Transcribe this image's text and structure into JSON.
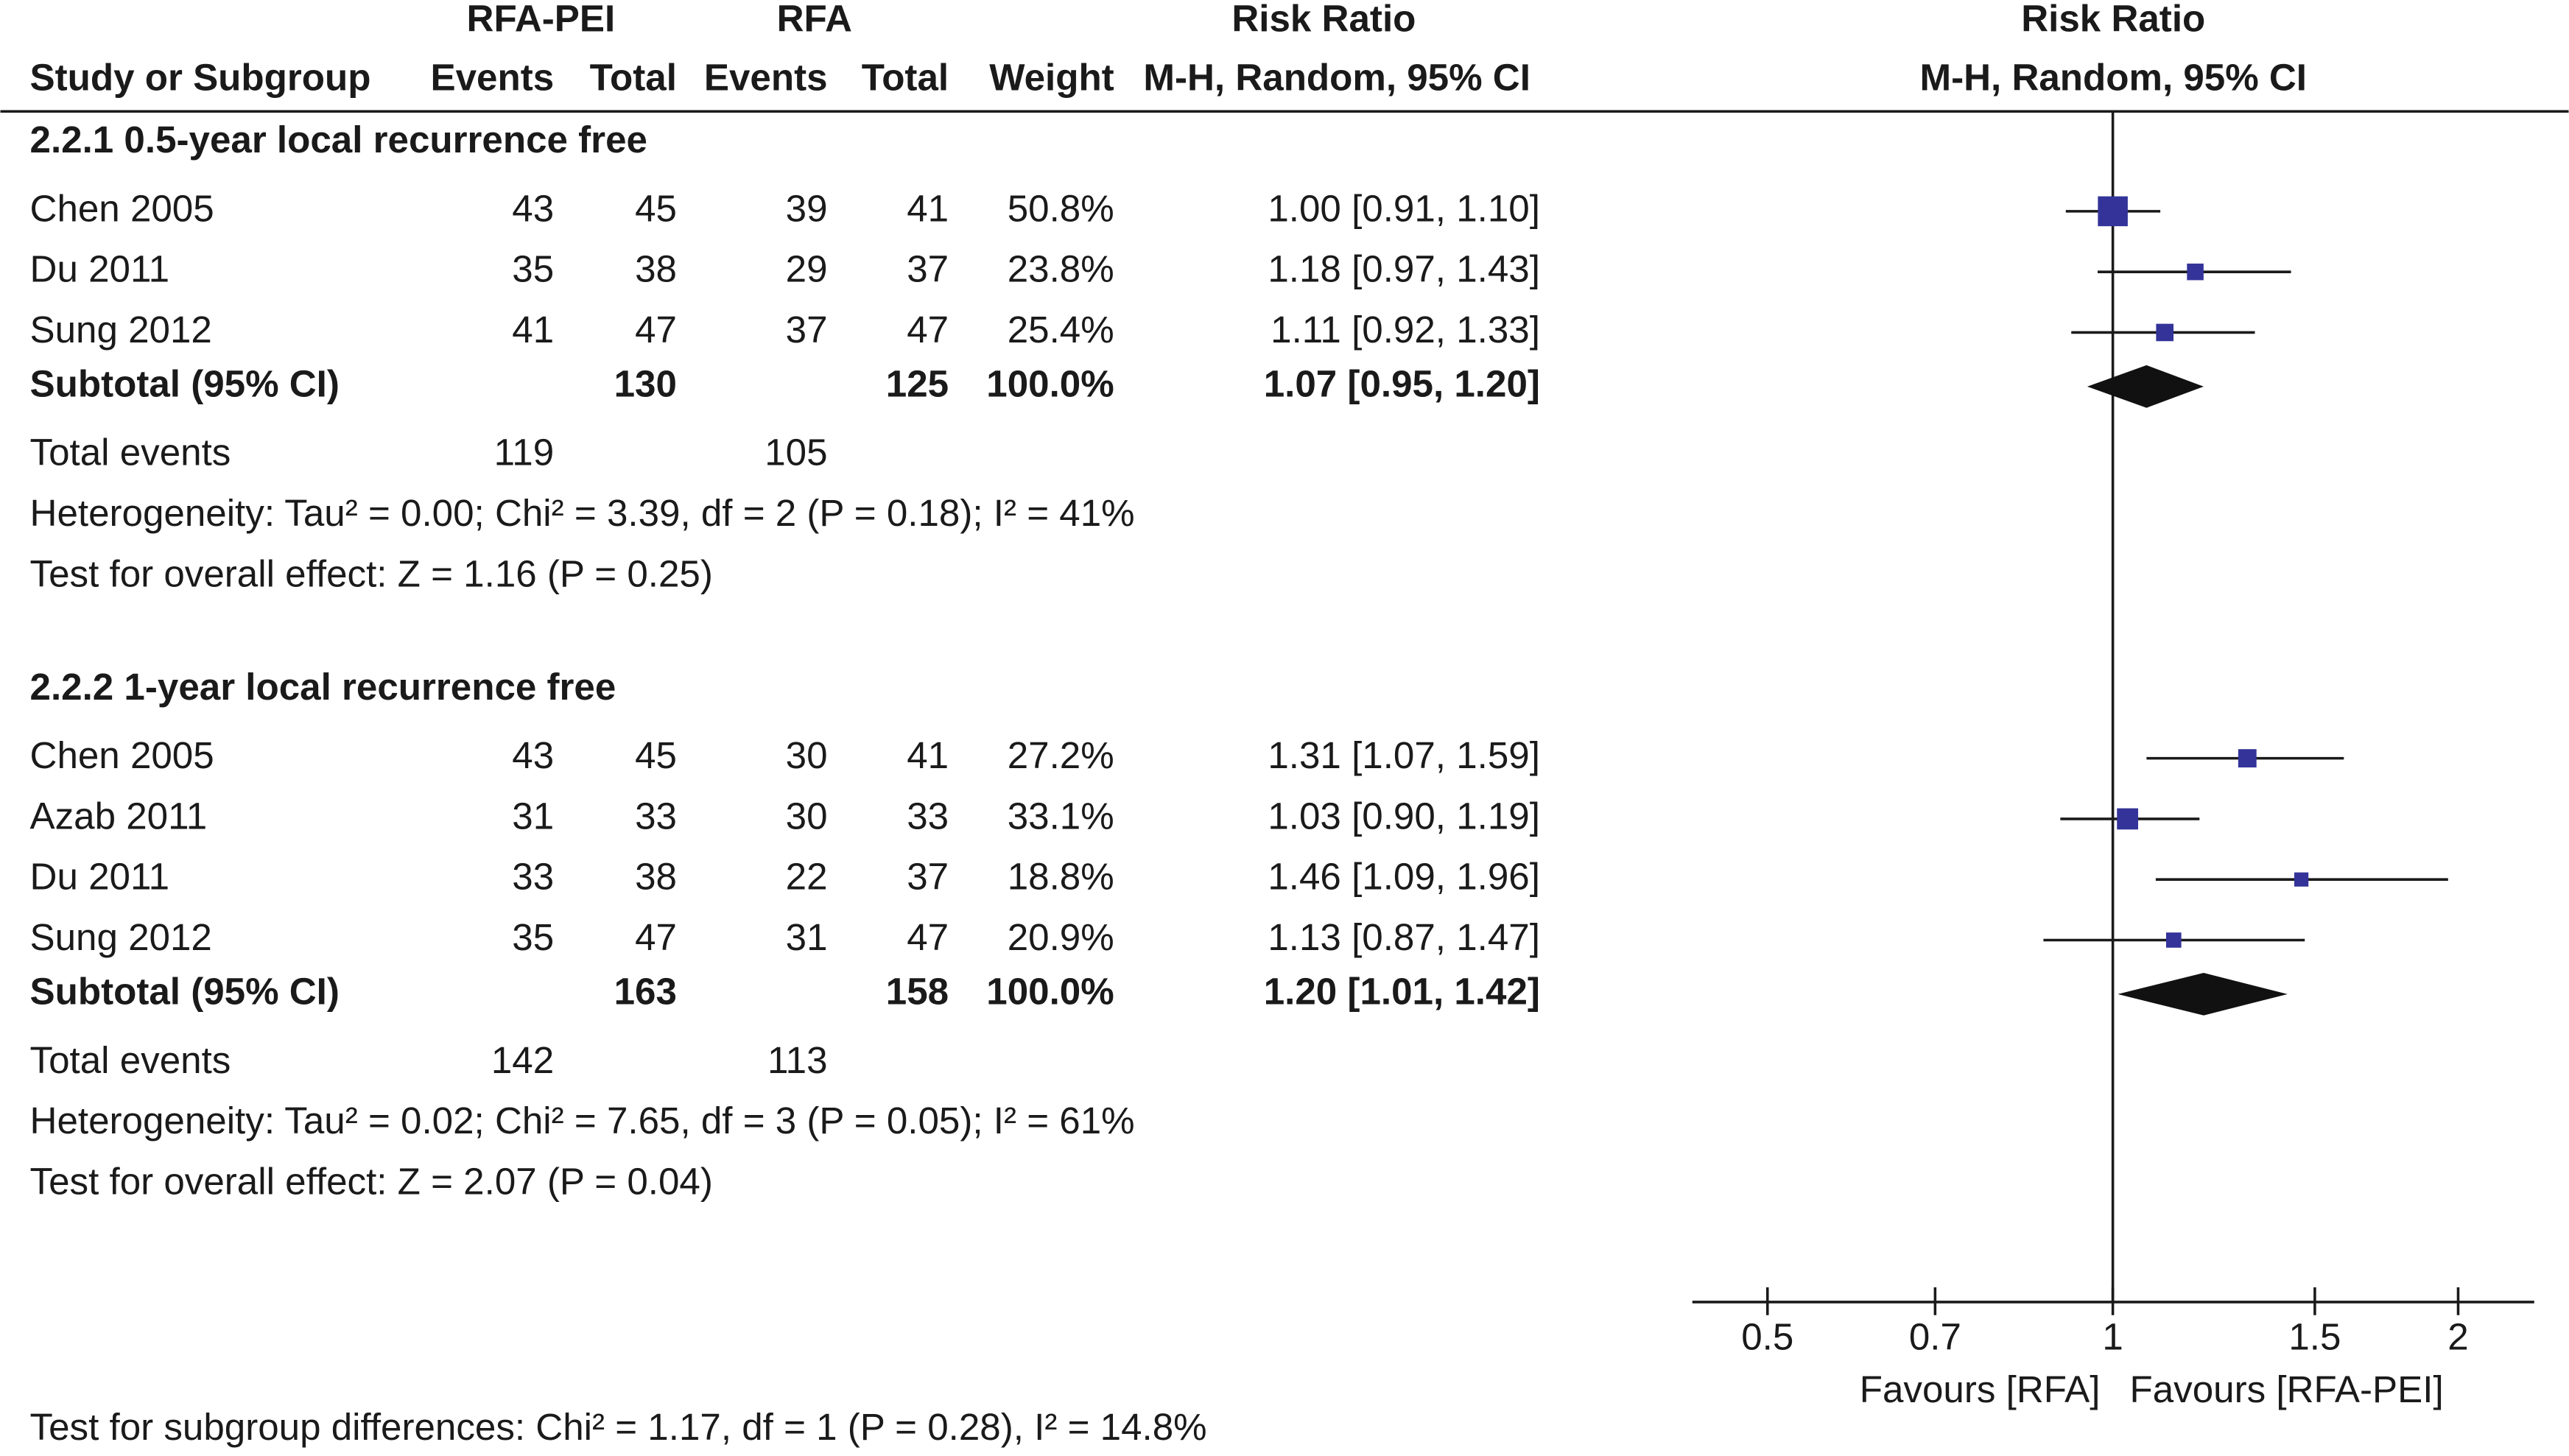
{
  "chart_data": {
    "type": "forest",
    "columns": {
      "experimental": "RFA-PEI",
      "control": "RFA",
      "study": "Study or Subgroup",
      "events": "Events",
      "total": "Total",
      "weight": "Weight",
      "effect_title": "Risk Ratio",
      "effect_method": "M-H, Random, 95% CI"
    },
    "subtotal_label": "Subtotal (95% CI)",
    "total_events_label": "Total events",
    "groups": [
      {
        "title": "2.2.1 0.5-year local recurrence free",
        "studies": [
          {
            "name": "Chen 2005",
            "exp_events": 43,
            "exp_total": 45,
            "ctl_events": 39,
            "ctl_total": 41,
            "weight": 50.8,
            "weight_label": "50.8%",
            "rr": 1.0,
            "lo": 0.91,
            "hi": 1.1,
            "ci_label": "1.00 [0.91, 1.10]"
          },
          {
            "name": "Du 2011",
            "exp_events": 35,
            "exp_total": 38,
            "ctl_events": 29,
            "ctl_total": 37,
            "weight": 23.8,
            "weight_label": "23.8%",
            "rr": 1.18,
            "lo": 0.97,
            "hi": 1.43,
            "ci_label": "1.18 [0.97, 1.43]"
          },
          {
            "name": "Sung 2012",
            "exp_events": 41,
            "exp_total": 47,
            "ctl_events": 37,
            "ctl_total": 47,
            "weight": 25.4,
            "weight_label": "25.4%",
            "rr": 1.11,
            "lo": 0.92,
            "hi": 1.33,
            "ci_label": "1.11 [0.92, 1.33]"
          }
        ],
        "subtotal": {
          "exp_total": 130,
          "ctl_total": 125,
          "weight_label": "100.0%",
          "rr": 1.07,
          "lo": 0.95,
          "hi": 1.2,
          "ci_label": "1.07 [0.95, 1.20]"
        },
        "exp_events_total": 119,
        "ctl_events_total": 105,
        "heterogeneity": "Heterogeneity: Tau² = 0.00; Chi² = 3.39, df = 2 (P = 0.18); I² = 41%",
        "overall_effect": "Test for overall effect: Z = 1.16 (P = 0.25)"
      },
      {
        "title": "2.2.2 1-year local recurrence free",
        "studies": [
          {
            "name": "Chen 2005",
            "exp_events": 43,
            "exp_total": 45,
            "ctl_events": 30,
            "ctl_total": 41,
            "weight": 27.2,
            "weight_label": "27.2%",
            "rr": 1.31,
            "lo": 1.07,
            "hi": 1.59,
            "ci_label": "1.31 [1.07, 1.59]"
          },
          {
            "name": "Azab 2011",
            "exp_events": 31,
            "exp_total": 33,
            "ctl_events": 30,
            "ctl_total": 33,
            "weight": 33.1,
            "weight_label": "33.1%",
            "rr": 1.03,
            "lo": 0.9,
            "hi": 1.19,
            "ci_label": "1.03 [0.90, 1.19]"
          },
          {
            "name": "Du 2011",
            "exp_events": 33,
            "exp_total": 38,
            "ctl_events": 22,
            "ctl_total": 37,
            "weight": 18.8,
            "weight_label": "18.8%",
            "rr": 1.46,
            "lo": 1.09,
            "hi": 1.96,
            "ci_label": "1.46 [1.09, 1.96]"
          },
          {
            "name": "Sung 2012",
            "exp_events": 35,
            "exp_total": 47,
            "ctl_events": 31,
            "ctl_total": 47,
            "weight": 20.9,
            "weight_label": "20.9%",
            "rr": 1.13,
            "lo": 0.87,
            "hi": 1.47,
            "ci_label": "1.13 [0.87, 1.47]"
          }
        ],
        "subtotal": {
          "exp_total": 163,
          "ctl_total": 158,
          "weight_label": "100.0%",
          "rr": 1.2,
          "lo": 1.01,
          "hi": 1.42,
          "ci_label": "1.20 [1.01, 1.42]"
        },
        "exp_events_total": 142,
        "ctl_events_total": 113,
        "heterogeneity": "Heterogeneity: Tau² = 0.02; Chi² = 7.65, df = 3 (P = 0.05); I² = 61%",
        "overall_effect": "Test for overall effect: Z = 2.07 (P = 0.04)"
      }
    ],
    "subgroup_test": "Test for subgroup differences: Chi² = 1.17, df = 1 (P = 0.28), I² = 14.8%",
    "x_log": true,
    "xlim": [
      0.43,
      2.33
    ],
    "xticks": [
      0.5,
      0.7,
      1,
      1.5,
      2
    ],
    "favours": [
      "Favours [RFA]",
      "Favours [RFA-PEI]"
    ],
    "square_color": "#333399",
    "diamond_color": "#111111"
  }
}
